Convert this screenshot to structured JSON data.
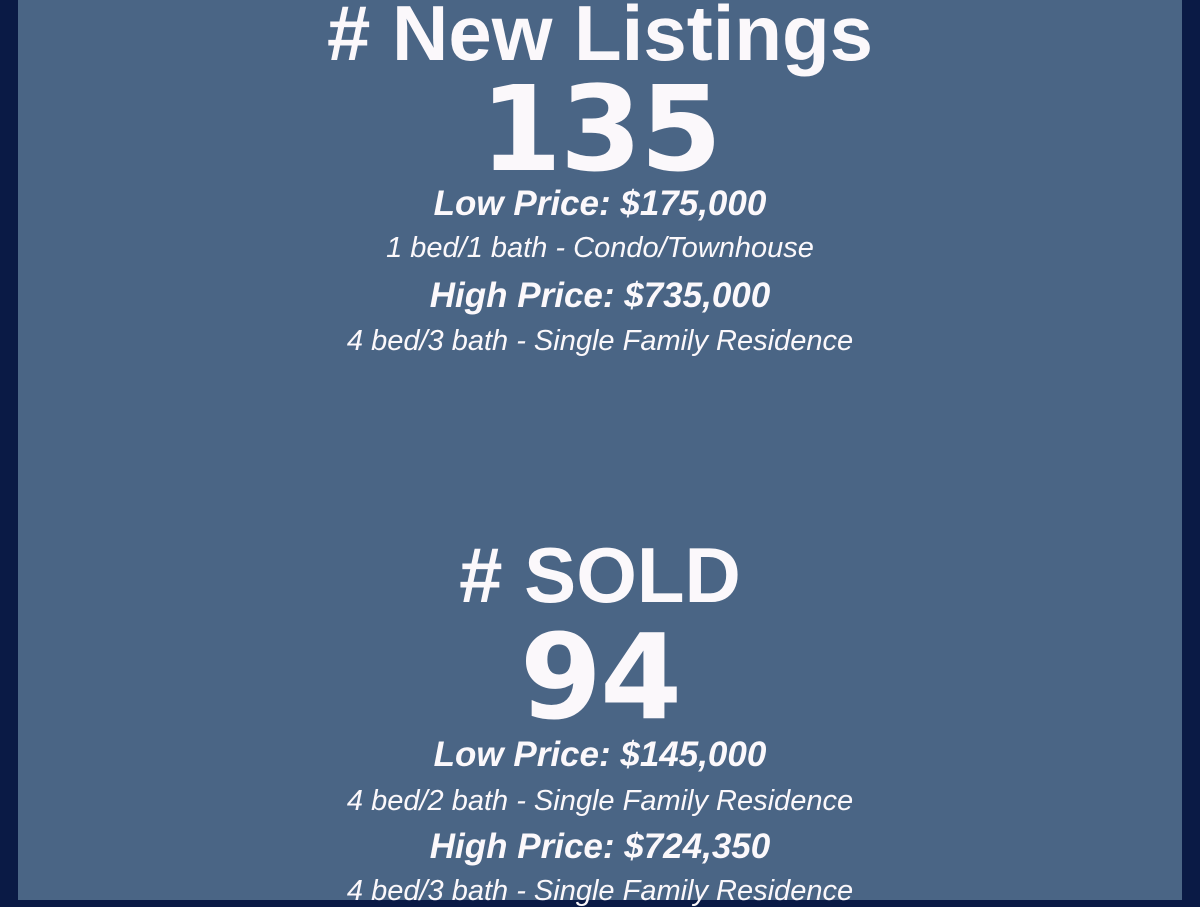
{
  "colors": {
    "background": "#0a1a45",
    "panel": "#4a6585",
    "text": "#fbf8fb"
  },
  "new_listings": {
    "heading": "# New Listings",
    "count": "135",
    "low_price": "Low Price: $175,000",
    "low_detail": "1 bed/1 bath - Condo/Townhouse",
    "high_price": "High Price: $735,000",
    "high_detail": "4 bed/3 bath - Single Family Residence"
  },
  "sold": {
    "heading": "# SOLD",
    "count": "94",
    "low_price": "Low Price: $145,000",
    "low_detail": "4 bed/2 bath - Single Family Residence",
    "high_price": "High Price: $724,350",
    "high_detail": "4 bed/3 bath - Single Family Residence"
  }
}
